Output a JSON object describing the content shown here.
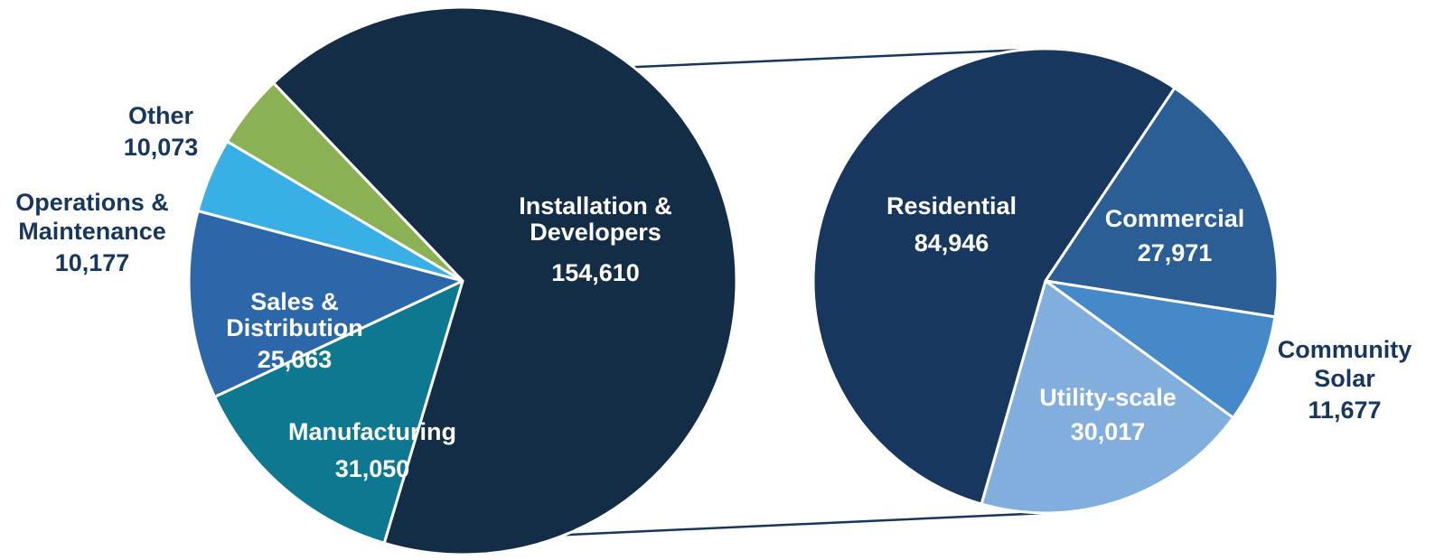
{
  "chart_data": [
    {
      "type": "pie",
      "title": "",
      "slices": [
        {
          "name": "Installation & Developers",
          "lines": [
            "Installation &",
            "Developers"
          ],
          "value": 154610,
          "value_label": "154,610",
          "color": "#142d47"
        },
        {
          "name": "Manufacturing",
          "lines": [
            "Manufacturing"
          ],
          "value": 31050,
          "value_label": "31,050",
          "color": "#0e7890"
        },
        {
          "name": "Sales & Distribution",
          "lines": [
            "Sales &",
            "Distribution"
          ],
          "value": 25663,
          "value_label": "25,663",
          "color": "#2c68a9"
        },
        {
          "name": "Operations & Maintenance",
          "lines": [
            "Operations &",
            "Maintenance"
          ],
          "value": 10177,
          "value_label": "10,177",
          "color": "#38b0e6"
        },
        {
          "name": "Other",
          "lines": [
            "Other"
          ],
          "value": 10073,
          "value_label": "10,073",
          "color": "#8ab153"
        }
      ]
    },
    {
      "type": "pie",
      "title": "",
      "breakdown_of": "Installation & Developers",
      "slices": [
        {
          "name": "Residential",
          "lines": [
            "Residential"
          ],
          "value": 84946,
          "value_label": "84,946",
          "color": "#17375e"
        },
        {
          "name": "Commercial",
          "lines": [
            "Commercial"
          ],
          "value": 27971,
          "value_label": "27,971",
          "color": "#2c5e96"
        },
        {
          "name": "Community Solar",
          "lines": [
            "Community",
            "Solar"
          ],
          "value": 11677,
          "value_label": "11,677",
          "color": "#4589c8"
        },
        {
          "name": "Utility-scale",
          "lines": [
            "Utility-scale"
          ],
          "value": 30017,
          "value_label": "30,017",
          "color": "#82aedd"
        }
      ]
    }
  ]
}
